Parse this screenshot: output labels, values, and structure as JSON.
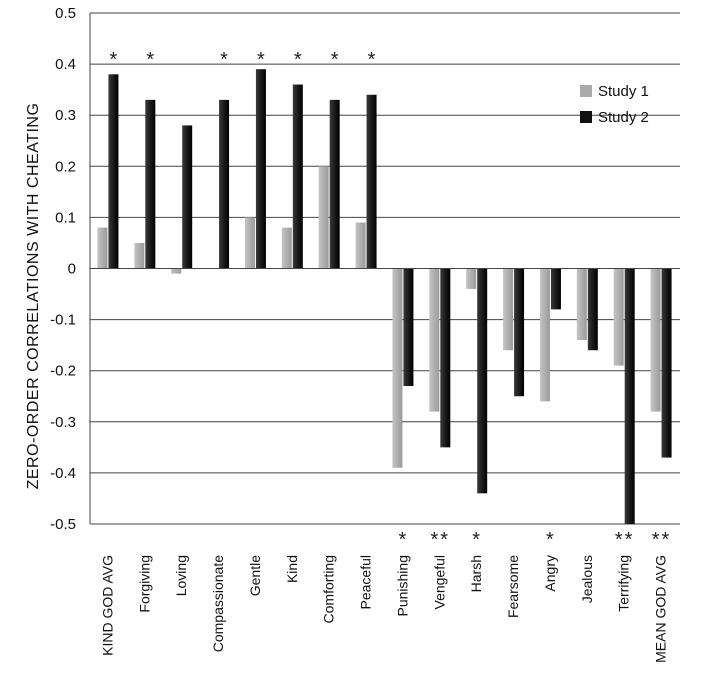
{
  "chart_data": {
    "type": "bar",
    "title": "",
    "ylabel": "ZERO-ORDER CORRELATIONS WITH CHEATING",
    "xlabel": "",
    "ylim": [
      -0.5,
      0.5
    ],
    "yticks": [
      "0.5",
      "0.4",
      "0.3",
      "0.2",
      "0.1",
      "0",
      "-0.1",
      "-0.2",
      "-0.3",
      "-0.4",
      "-0.5"
    ],
    "grid": "horizontal",
    "legend_position": "right",
    "categories": [
      "KIND GOD AVG",
      "Forgiving",
      "Loving",
      "Compassionate",
      "Gentle",
      "Kind",
      "Comforting",
      "Peaceful",
      "Punishing",
      "Vengeful",
      "Harsh",
      "Fearsome",
      "Angry",
      "Jealous",
      "Terrifying",
      "MEAN GOD AVG"
    ],
    "series": [
      {
        "name": "Study 1",
        "color": "#aaaaaa",
        "values": [
          0.08,
          0.05,
          -0.01,
          0.0,
          0.1,
          0.08,
          0.2,
          0.09,
          -0.39,
          -0.28,
          -0.04,
          -0.16,
          -0.26,
          -0.14,
          -0.19,
          -0.28
        ]
      },
      {
        "name": "Study 2",
        "color": "#111111",
        "values": [
          0.38,
          0.33,
          0.28,
          0.33,
          0.39,
          0.36,
          0.33,
          0.34,
          -0.23,
          -0.35,
          -0.44,
          -0.25,
          -0.08,
          -0.16,
          -0.5,
          -0.37
        ]
      }
    ],
    "significance_top": [
      "*",
      "*",
      "",
      "*",
      "*",
      "*",
      "*",
      "*",
      "",
      "",
      "",
      "",
      "",
      "",
      "",
      ""
    ],
    "significance_bottom": [
      "",
      "",
      "",
      "",
      "",
      "",
      "",
      "",
      "*",
      "**",
      "*",
      "",
      "*",
      "",
      "**",
      "**"
    ]
  }
}
